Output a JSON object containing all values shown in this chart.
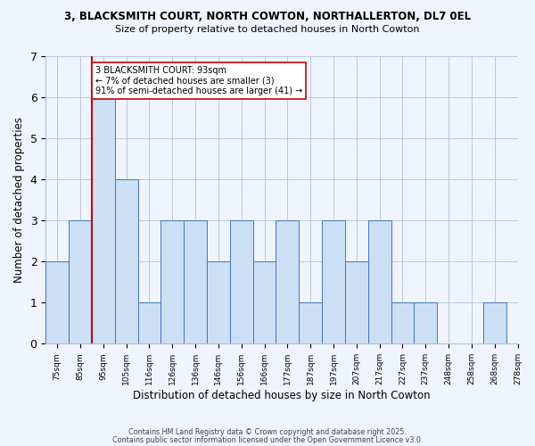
{
  "title_line1": "3, BLACKSMITH COURT, NORTH COWTON, NORTHALLERTON, DL7 0EL",
  "title_line2": "Size of property relative to detached houses in North Cowton",
  "xlabel": "Distribution of detached houses by size in North Cowton",
  "ylabel": "Number of detached properties",
  "bin_labels": [
    "75sqm",
    "85sqm",
    "95sqm",
    "105sqm",
    "116sqm",
    "126sqm",
    "136sqm",
    "146sqm",
    "156sqm",
    "166sqm",
    "177sqm",
    "187sqm",
    "197sqm",
    "207sqm",
    "217sqm",
    "227sqm",
    "237sqm",
    "248sqm",
    "258sqm",
    "268sqm",
    "278sqm"
  ],
  "values": [
    2,
    3,
    6,
    4,
    1,
    3,
    3,
    2,
    3,
    2,
    3,
    1,
    3,
    2,
    3,
    1,
    1,
    0,
    0,
    1
  ],
  "bar_color": "#cce0f5",
  "bar_edge_color": "#4472c4",
  "vline_x": 2,
  "vline_color": "#cc0000",
  "annotation_text": "3 BLACKSMITH COURT: 93sqm\n← 7% of detached houses are smaller (3)\n91% of semi-detached houses are larger (41) →",
  "annotation_box_color": "#ffffff",
  "annotation_border_color": "#cc0000",
  "ylim": [
    0,
    7
  ],
  "yticks": [
    0,
    1,
    2,
    3,
    4,
    5,
    6,
    7
  ],
  "footer_line1": "Contains HM Land Registry data © Crown copyright and database right 2025.",
  "footer_line2": "Contains public sector information licensed under the Open Government Licence v3.0.",
  "background_color": "#f0f4ff",
  "grid_color": "#b0c0d8"
}
